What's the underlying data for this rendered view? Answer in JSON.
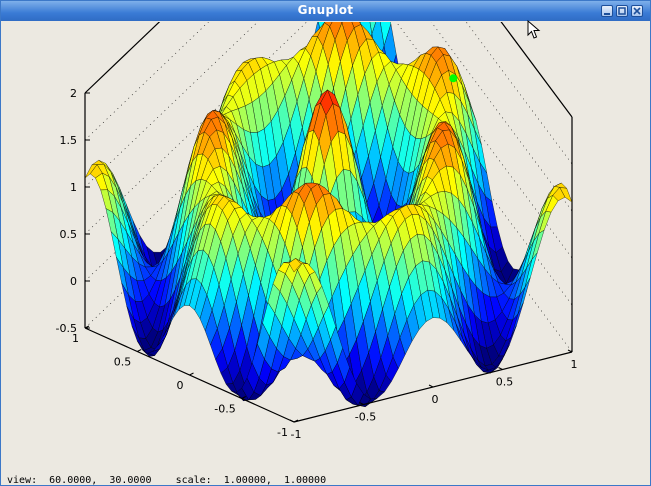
{
  "window": {
    "title": "Gnuplot"
  },
  "titlebar_buttons": [
    "minimize-icon",
    "maximize-icon",
    "close-icon"
  ],
  "status": {
    "text": "view:  60.0000,  30.0000    scale:  1.00000,  1.00000"
  },
  "colors": {
    "titlebar": "#3a7bd5",
    "background": "#ece9e1",
    "peak_marker": "#00ff00"
  },
  "chart_data": {
    "type": "surface",
    "function": "sin(4x)*sin(4y)-like oscillating surface",
    "x_range": [
      -1,
      1
    ],
    "y_range": [
      -1,
      1
    ],
    "z_range": [
      -0.5,
      2
    ],
    "z_ticks": [
      "2",
      "1.5",
      "1",
      "0.5",
      "0",
      "-0.5"
    ],
    "x_ticks": [
      "1",
      "0.5",
      "0",
      "-0.5",
      "-1"
    ],
    "y_ticks": [
      "-1",
      "-0.5",
      "0",
      "0.5",
      "1"
    ],
    "colormap": "jet",
    "view": {
      "rot_x": 60,
      "rot_z": 30,
      "scale": 1.0,
      "scale_z": 1.0
    }
  }
}
